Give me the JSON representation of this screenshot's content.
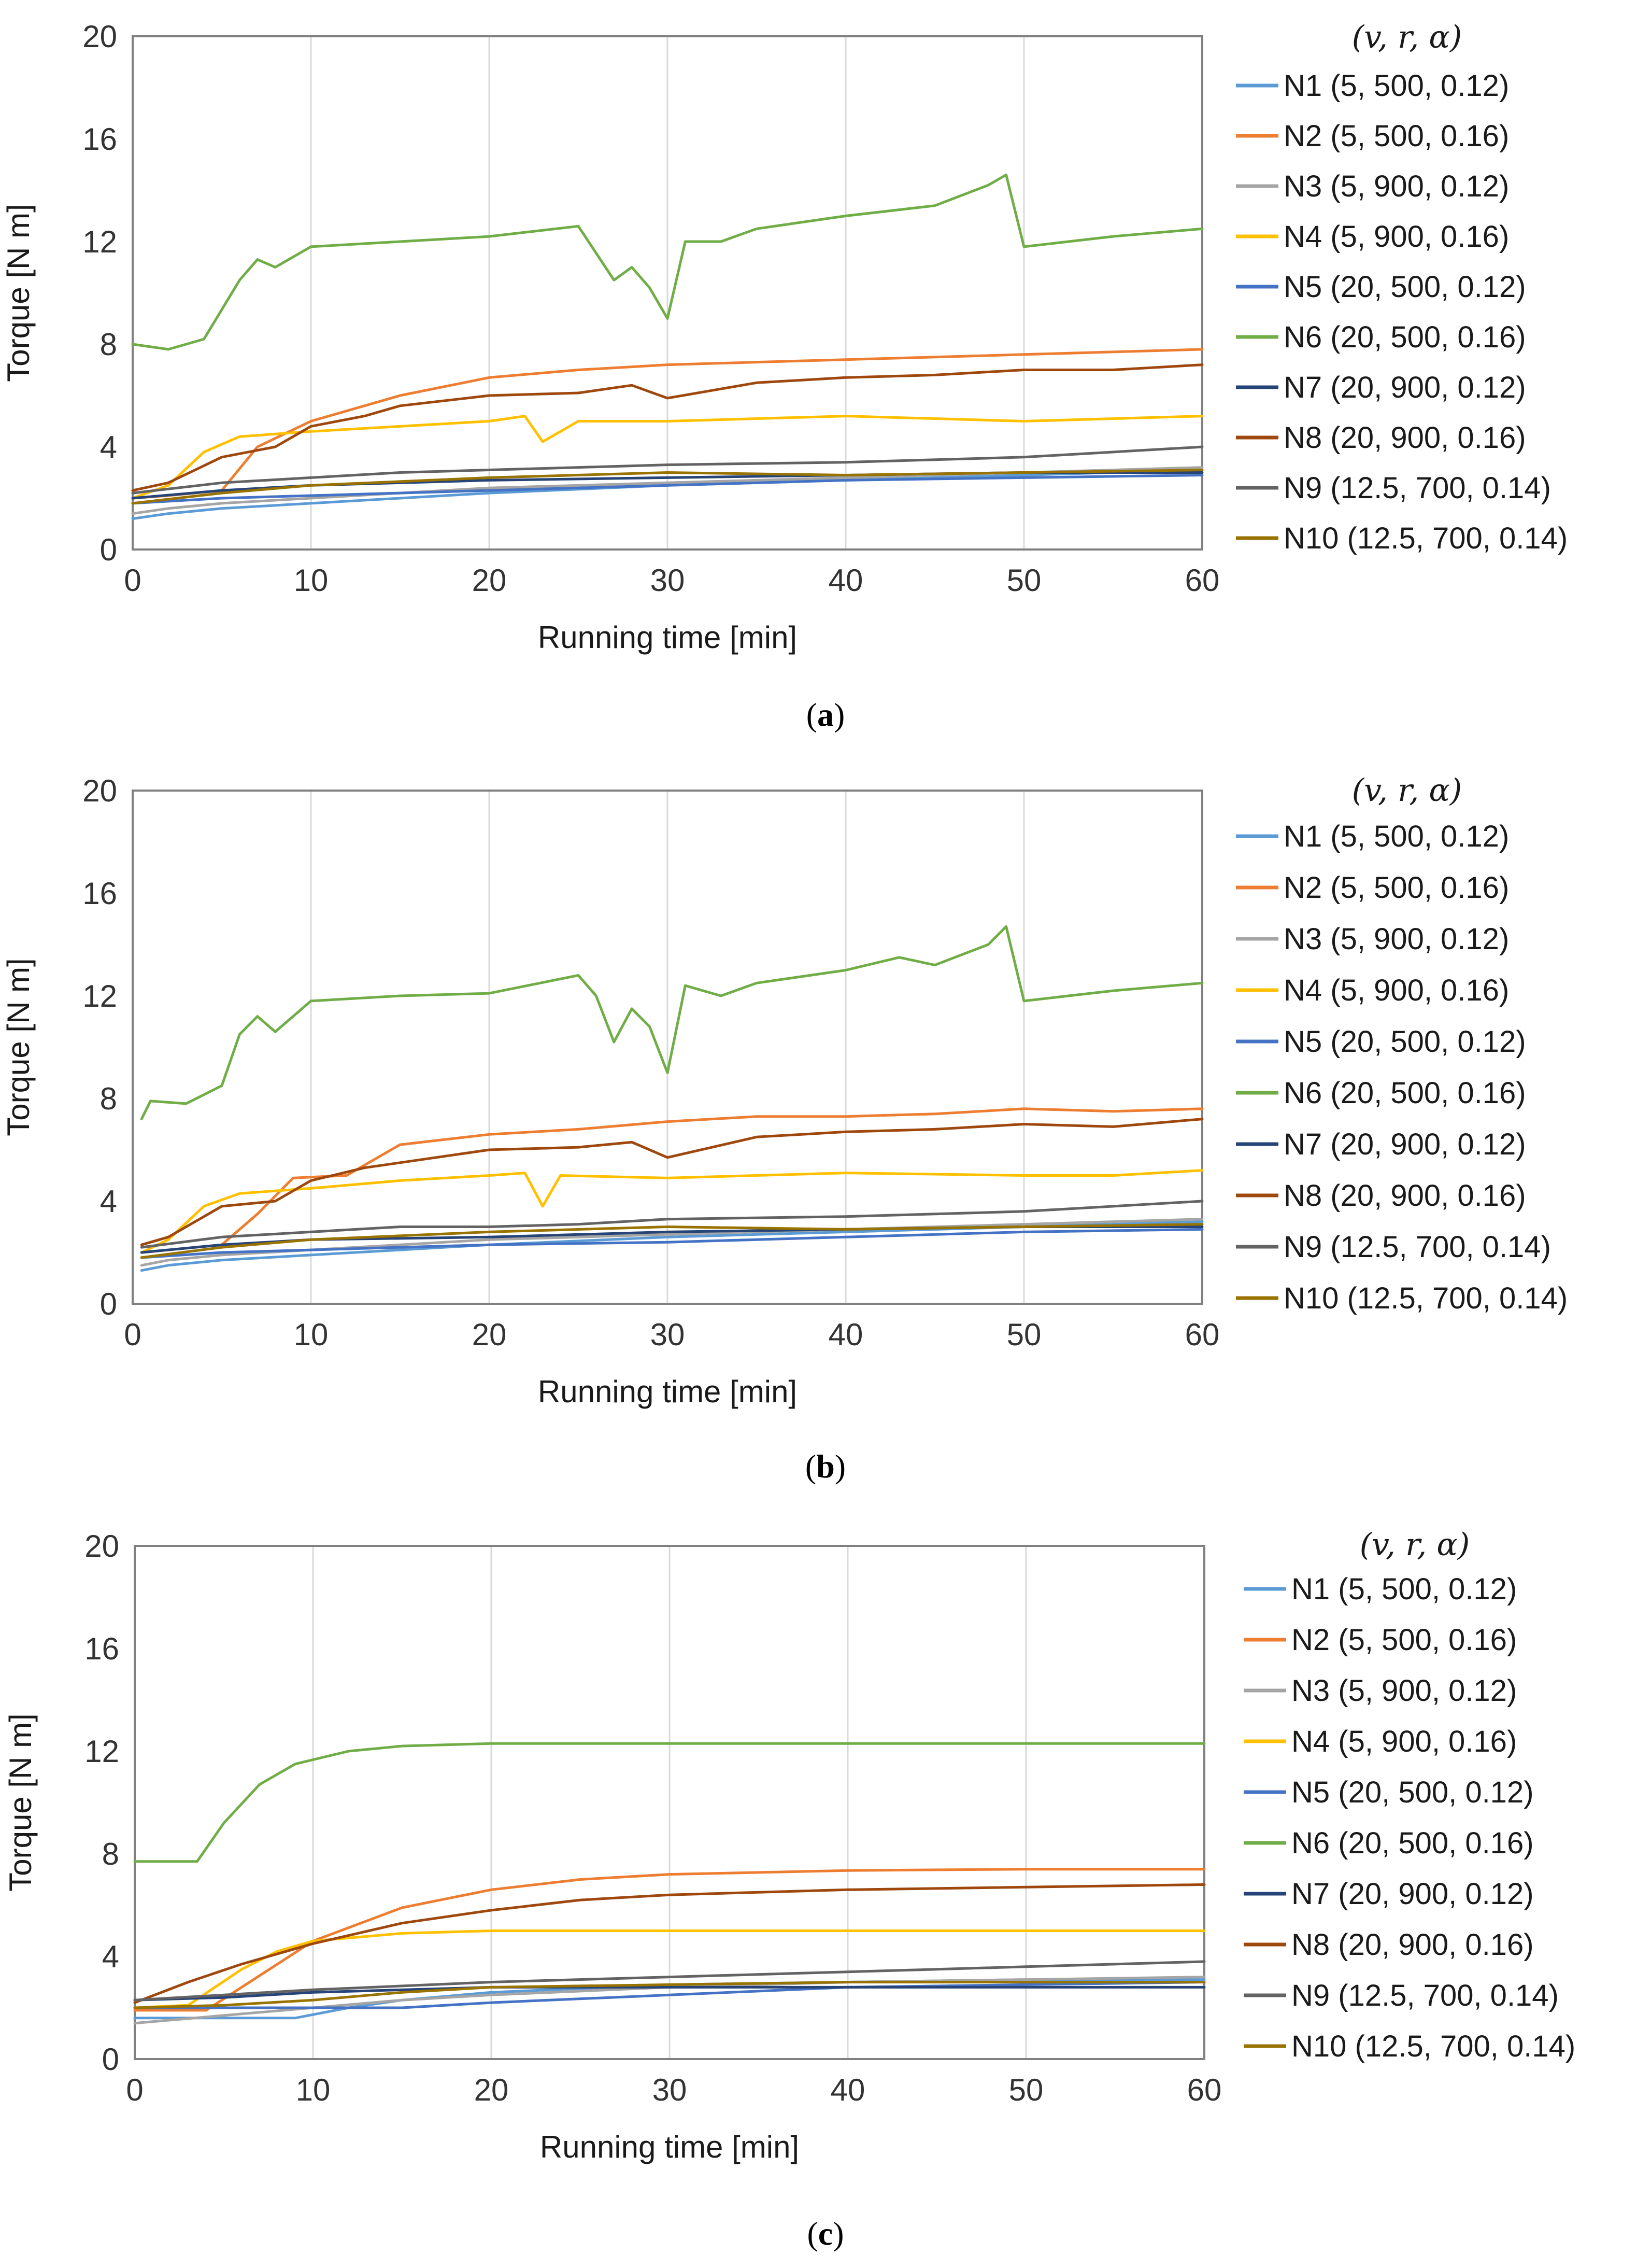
{
  "colors": {
    "N1": "#5b9bd5",
    "N2": "#ed7d31",
    "N3": "#a5a5a5",
    "N4": "#ffc000",
    "N5": "#4472c4",
    "N6": "#70ad47",
    "N7": "#264478",
    "N8": "#9e480e",
    "N9": "#636363",
    "N10": "#997300",
    "grid": "#d9d9d9",
    "axis": "#808080"
  },
  "chart_data": [
    {
      "panel": "a",
      "caption": {
        "open": "(",
        "letter": "a",
        "close": ")"
      },
      "type": "line",
      "xlabel": "Running time [min]",
      "ylabel": "Torque [N m]",
      "xlim": [
        0,
        60
      ],
      "ylim": [
        0,
        20
      ],
      "xticks": [
        "0",
        "10",
        "20",
        "30",
        "40",
        "50",
        "60"
      ],
      "yticks": [
        "0",
        "4",
        "8",
        "12",
        "16",
        "20"
      ],
      "grid": "vertical",
      "legend_title": "(v, r, α)",
      "legend_position": "right",
      "series": [
        {
          "id": "N1",
          "name": "N1 (5, 500, 0.12)",
          "x": [
            0,
            2,
            5,
            10,
            15,
            20,
            30,
            40,
            50,
            60
          ],
          "y": [
            1.2,
            1.4,
            1.6,
            1.8,
            2.0,
            2.2,
            2.5,
            2.7,
            2.9,
            3.1
          ]
        },
        {
          "id": "N2",
          "name": "N2 (5, 500, 0.16)",
          "x": [
            0,
            2,
            5,
            7,
            10,
            15,
            20,
            25,
            30,
            40,
            50,
            60
          ],
          "y": [
            2.0,
            2.1,
            2.3,
            4.0,
            5.0,
            6.0,
            6.7,
            7.0,
            7.2,
            7.4,
            7.6,
            7.8
          ]
        },
        {
          "id": "N3",
          "name": "N3 (5, 900, 0.12)",
          "x": [
            0,
            2,
            5,
            10,
            15,
            20,
            30,
            40,
            50,
            60
          ],
          "y": [
            1.4,
            1.6,
            1.8,
            2.0,
            2.2,
            2.4,
            2.6,
            2.8,
            3.0,
            3.2
          ]
        },
        {
          "id": "N4",
          "name": "N4 (5, 900, 0.16)",
          "x": [
            0,
            2,
            4,
            6,
            10,
            15,
            20,
            22,
            23,
            25,
            30,
            40,
            50,
            60
          ],
          "y": [
            2.0,
            2.5,
            3.8,
            4.4,
            4.6,
            4.8,
            5.0,
            5.2,
            4.2,
            5.0,
            5.0,
            5.2,
            5.0,
            5.2
          ]
        },
        {
          "id": "N5",
          "name": "N5 (20, 500, 0.12)",
          "x": [
            0,
            5,
            10,
            20,
            30,
            40,
            50,
            60
          ],
          "y": [
            1.8,
            2.0,
            2.1,
            2.3,
            2.5,
            2.7,
            2.8,
            2.9
          ]
        },
        {
          "id": "N6",
          "name": "N6 (20, 500, 0.16)",
          "x": [
            0,
            2,
            4,
            6,
            7,
            8,
            10,
            15,
            20,
            25,
            27,
            28,
            29,
            30,
            31,
            33,
            35,
            40,
            45,
            48,
            49,
            50,
            55,
            60
          ],
          "y": [
            8.0,
            7.8,
            8.2,
            10.5,
            11.3,
            11.0,
            11.8,
            12.0,
            12.2,
            12.6,
            10.5,
            11.0,
            10.2,
            9.0,
            12.0,
            12.0,
            12.5,
            13.0,
            13.4,
            14.2,
            14.6,
            11.8,
            12.2,
            12.5
          ]
        },
        {
          "id": "N7",
          "name": "N7 (20, 900, 0.12)",
          "x": [
            0,
            5,
            10,
            20,
            30,
            40,
            50,
            60
          ],
          "y": [
            2.0,
            2.3,
            2.5,
            2.7,
            2.8,
            2.9,
            3.0,
            3.0
          ]
        },
        {
          "id": "N8",
          "name": "N8 (20, 900, 0.16)",
          "x": [
            0,
            2,
            5,
            8,
            10,
            13,
            15,
            20,
            25,
            28,
            30,
            35,
            40,
            45,
            50,
            55,
            60
          ],
          "y": [
            2.3,
            2.6,
            3.6,
            4.0,
            4.8,
            5.2,
            5.6,
            6.0,
            6.1,
            6.4,
            5.9,
            6.5,
            6.7,
            6.8,
            7.0,
            7.0,
            7.2
          ]
        },
        {
          "id": "N9",
          "name": "N9 (12.5, 700, 0.14)",
          "x": [
            0,
            5,
            10,
            15,
            20,
            25,
            30,
            40,
            50,
            60
          ],
          "y": [
            2.2,
            2.6,
            2.8,
            3.0,
            3.1,
            3.2,
            3.3,
            3.4,
            3.6,
            4.0
          ]
        },
        {
          "id": "N10",
          "name": "N10 (12.5, 700, 0.14)",
          "x": [
            0,
            5,
            10,
            20,
            30,
            40,
            50,
            60
          ],
          "y": [
            1.8,
            2.2,
            2.5,
            2.8,
            3.0,
            2.9,
            3.0,
            3.1
          ]
        }
      ]
    },
    {
      "panel": "b",
      "caption": {
        "open": "(",
        "letter": "b",
        "close": ")"
      },
      "type": "line",
      "xlabel": "Running time [min]",
      "ylabel": "Torque [N m]",
      "xlim": [
        0,
        60
      ],
      "ylim": [
        0,
        20
      ],
      "xticks": [
        "0",
        "10",
        "20",
        "30",
        "40",
        "50",
        "60"
      ],
      "yticks": [
        "0",
        "4",
        "8",
        "12",
        "16",
        "20"
      ],
      "grid": "vertical",
      "legend_title": "(v, r, α)",
      "legend_position": "right",
      "series": [
        {
          "id": "N1",
          "name": "N1 (5, 500, 0.12)",
          "x": [
            0.5,
            2,
            5,
            10,
            15,
            20,
            30,
            40,
            50,
            60
          ],
          "y": [
            1.3,
            1.5,
            1.7,
            1.9,
            2.1,
            2.3,
            2.6,
            2.8,
            3.0,
            3.2
          ]
        },
        {
          "id": "N2",
          "name": "N2 (5, 500, 0.16)",
          "x": [
            0.5,
            2,
            5,
            7,
            9,
            12,
            15,
            20,
            25,
            30,
            35,
            40,
            45,
            50,
            55,
            60
          ],
          "y": [
            2.0,
            2.1,
            2.3,
            3.5,
            4.9,
            5.0,
            6.2,
            6.6,
            6.8,
            7.1,
            7.3,
            7.3,
            7.4,
            7.6,
            7.5,
            7.6
          ]
        },
        {
          "id": "N3",
          "name": "N3 (5, 900, 0.12)",
          "x": [
            0.5,
            2,
            5,
            10,
            15,
            20,
            30,
            40,
            50,
            60
          ],
          "y": [
            1.5,
            1.7,
            1.9,
            2.1,
            2.3,
            2.5,
            2.7,
            2.9,
            3.1,
            3.3
          ]
        },
        {
          "id": "N4",
          "name": "N4 (5, 900, 0.16)",
          "x": [
            0.5,
            2,
            4,
            6,
            10,
            15,
            20,
            22,
            23,
            24,
            30,
            40,
            50,
            55,
            60
          ],
          "y": [
            2.0,
            2.5,
            3.8,
            4.3,
            4.5,
            4.8,
            5.0,
            5.1,
            3.8,
            5.0,
            4.9,
            5.1,
            5.0,
            5.0,
            5.2
          ]
        },
        {
          "id": "N5",
          "name": "N5 (20, 500, 0.12)",
          "x": [
            0.5,
            5,
            10,
            20,
            30,
            40,
            50,
            60
          ],
          "y": [
            1.8,
            2.0,
            2.1,
            2.3,
            2.4,
            2.6,
            2.8,
            2.9
          ]
        },
        {
          "id": "N6",
          "name": "N6 (20, 500, 0.16)",
          "x": [
            0.5,
            1,
            3,
            5,
            6,
            7,
            8,
            10,
            15,
            20,
            25,
            26,
            27,
            28,
            29,
            30,
            31,
            33,
            35,
            40,
            43,
            45,
            48,
            49,
            50,
            55,
            60
          ],
          "y": [
            7.2,
            7.9,
            7.8,
            8.5,
            10.5,
            11.2,
            10.6,
            11.8,
            12.0,
            12.1,
            12.8,
            12.0,
            10.2,
            11.5,
            10.8,
            9.0,
            12.4,
            12.0,
            12.5,
            13.0,
            13.5,
            13.2,
            14.0,
            14.7,
            11.8,
            12.2,
            12.5
          ]
        },
        {
          "id": "N7",
          "name": "N7 (20, 900, 0.12)",
          "x": [
            0.5,
            5,
            10,
            20,
            30,
            40,
            50,
            60
          ],
          "y": [
            2.0,
            2.3,
            2.5,
            2.6,
            2.8,
            2.9,
            3.0,
            3.0
          ]
        },
        {
          "id": "N8",
          "name": "N8 (20, 900, 0.16)",
          "x": [
            0.5,
            2,
            5,
            8,
            10,
            13,
            15,
            20,
            25,
            28,
            30,
            35,
            40,
            45,
            50,
            55,
            60
          ],
          "y": [
            2.3,
            2.6,
            3.8,
            4.0,
            4.8,
            5.3,
            5.5,
            6.0,
            6.1,
            6.3,
            5.7,
            6.5,
            6.7,
            6.8,
            7.0,
            6.9,
            7.2
          ]
        },
        {
          "id": "N9",
          "name": "N9 (12.5, 700, 0.14)",
          "x": [
            0.5,
            5,
            10,
            15,
            20,
            25,
            30,
            40,
            50,
            60
          ],
          "y": [
            2.2,
            2.6,
            2.8,
            3.0,
            3.0,
            3.1,
            3.3,
            3.4,
            3.6,
            4.0
          ]
        },
        {
          "id": "N10",
          "name": "N10 (12.5, 700, 0.14)",
          "x": [
            0.5,
            5,
            10,
            20,
            30,
            40,
            50,
            60
          ],
          "y": [
            1.8,
            2.2,
            2.5,
            2.8,
            3.0,
            2.9,
            3.0,
            3.1
          ]
        }
      ]
    },
    {
      "panel": "c",
      "caption": {
        "open": "(",
        "letter": "c",
        "close": ")"
      },
      "type": "line",
      "xlabel": "Running time [min]",
      "ylabel": "Torque [N m]",
      "xlim": [
        0,
        60
      ],
      "ylim": [
        0,
        20
      ],
      "xticks": [
        "0",
        "10",
        "20",
        "30",
        "40",
        "50",
        "60"
      ],
      "yticks": [
        "0",
        "4",
        "8",
        "12",
        "16",
        "20"
      ],
      "grid": "vertical",
      "legend_title": "(v, r, α)",
      "legend_position": "right",
      "series": [
        {
          "id": "N1",
          "name": "N1 (5, 500, 0.12)",
          "x": [
            0,
            5,
            9,
            12,
            15,
            20,
            30,
            40,
            50,
            60
          ],
          "y": [
            1.6,
            1.6,
            1.6,
            2.0,
            2.3,
            2.6,
            2.9,
            3.0,
            3.1,
            3.1
          ]
        },
        {
          "id": "N2",
          "name": "N2 (5, 500, 0.16)",
          "x": [
            0,
            4,
            6,
            10,
            15,
            20,
            25,
            30,
            40,
            50,
            60
          ],
          "y": [
            1.9,
            1.9,
            2.8,
            4.6,
            5.9,
            6.6,
            7.0,
            7.2,
            7.35,
            7.4,
            7.4
          ]
        },
        {
          "id": "N3",
          "name": "N3 (5, 900, 0.12)",
          "x": [
            0,
            5,
            10,
            15,
            20,
            30,
            40,
            50,
            60
          ],
          "y": [
            1.4,
            1.7,
            2.0,
            2.3,
            2.5,
            2.8,
            3.0,
            3.1,
            3.2
          ]
        },
        {
          "id": "N4",
          "name": "N4 (5, 900, 0.16)",
          "x": [
            0,
            3,
            6,
            8,
            10,
            15,
            20,
            30,
            40,
            50,
            60
          ],
          "y": [
            2.0,
            2.1,
            3.5,
            4.2,
            4.6,
            4.9,
            5.0,
            5.0,
            5.0,
            5.0,
            5.0
          ]
        },
        {
          "id": "N5",
          "name": "N5 (20, 500, 0.12)",
          "x": [
            0,
            10,
            15,
            20,
            30,
            40,
            50,
            60
          ],
          "y": [
            2.0,
            2.0,
            2.0,
            2.2,
            2.5,
            2.8,
            2.9,
            3.0
          ]
        },
        {
          "id": "N6",
          "name": "N6 (20, 500, 0.16)",
          "x": [
            0,
            3.5,
            5,
            7,
            9,
            12,
            15,
            20,
            30,
            40,
            50,
            60
          ],
          "y": [
            7.7,
            7.7,
            9.2,
            10.7,
            11.5,
            12.0,
            12.2,
            12.3,
            12.3,
            12.3,
            12.3,
            12.3
          ]
        },
        {
          "id": "N7",
          "name": "N7 (20, 900, 0.12)",
          "x": [
            0,
            5,
            10,
            20,
            30,
            40,
            50,
            60
          ],
          "y": [
            2.3,
            2.4,
            2.6,
            2.8,
            2.8,
            2.8,
            2.8,
            2.8
          ]
        },
        {
          "id": "N8",
          "name": "N8 (20, 900, 0.16)",
          "x": [
            0,
            3,
            6,
            10,
            15,
            20,
            25,
            30,
            40,
            50,
            60
          ],
          "y": [
            2.2,
            3.0,
            3.7,
            4.5,
            5.3,
            5.8,
            6.2,
            6.4,
            6.6,
            6.7,
            6.8
          ]
        },
        {
          "id": "N9",
          "name": "N9 (12.5, 700, 0.14)",
          "x": [
            0,
            10,
            20,
            30,
            40,
            50,
            60
          ],
          "y": [
            2.3,
            2.7,
            3.0,
            3.2,
            3.4,
            3.6,
            3.8
          ]
        },
        {
          "id": "N10",
          "name": "N10 (12.5, 700, 0.14)",
          "x": [
            0,
            5,
            10,
            15,
            20,
            30,
            40,
            50,
            60
          ],
          "y": [
            2.0,
            2.1,
            2.3,
            2.6,
            2.8,
            2.9,
            3.0,
            3.0,
            3.0
          ]
        }
      ]
    }
  ]
}
